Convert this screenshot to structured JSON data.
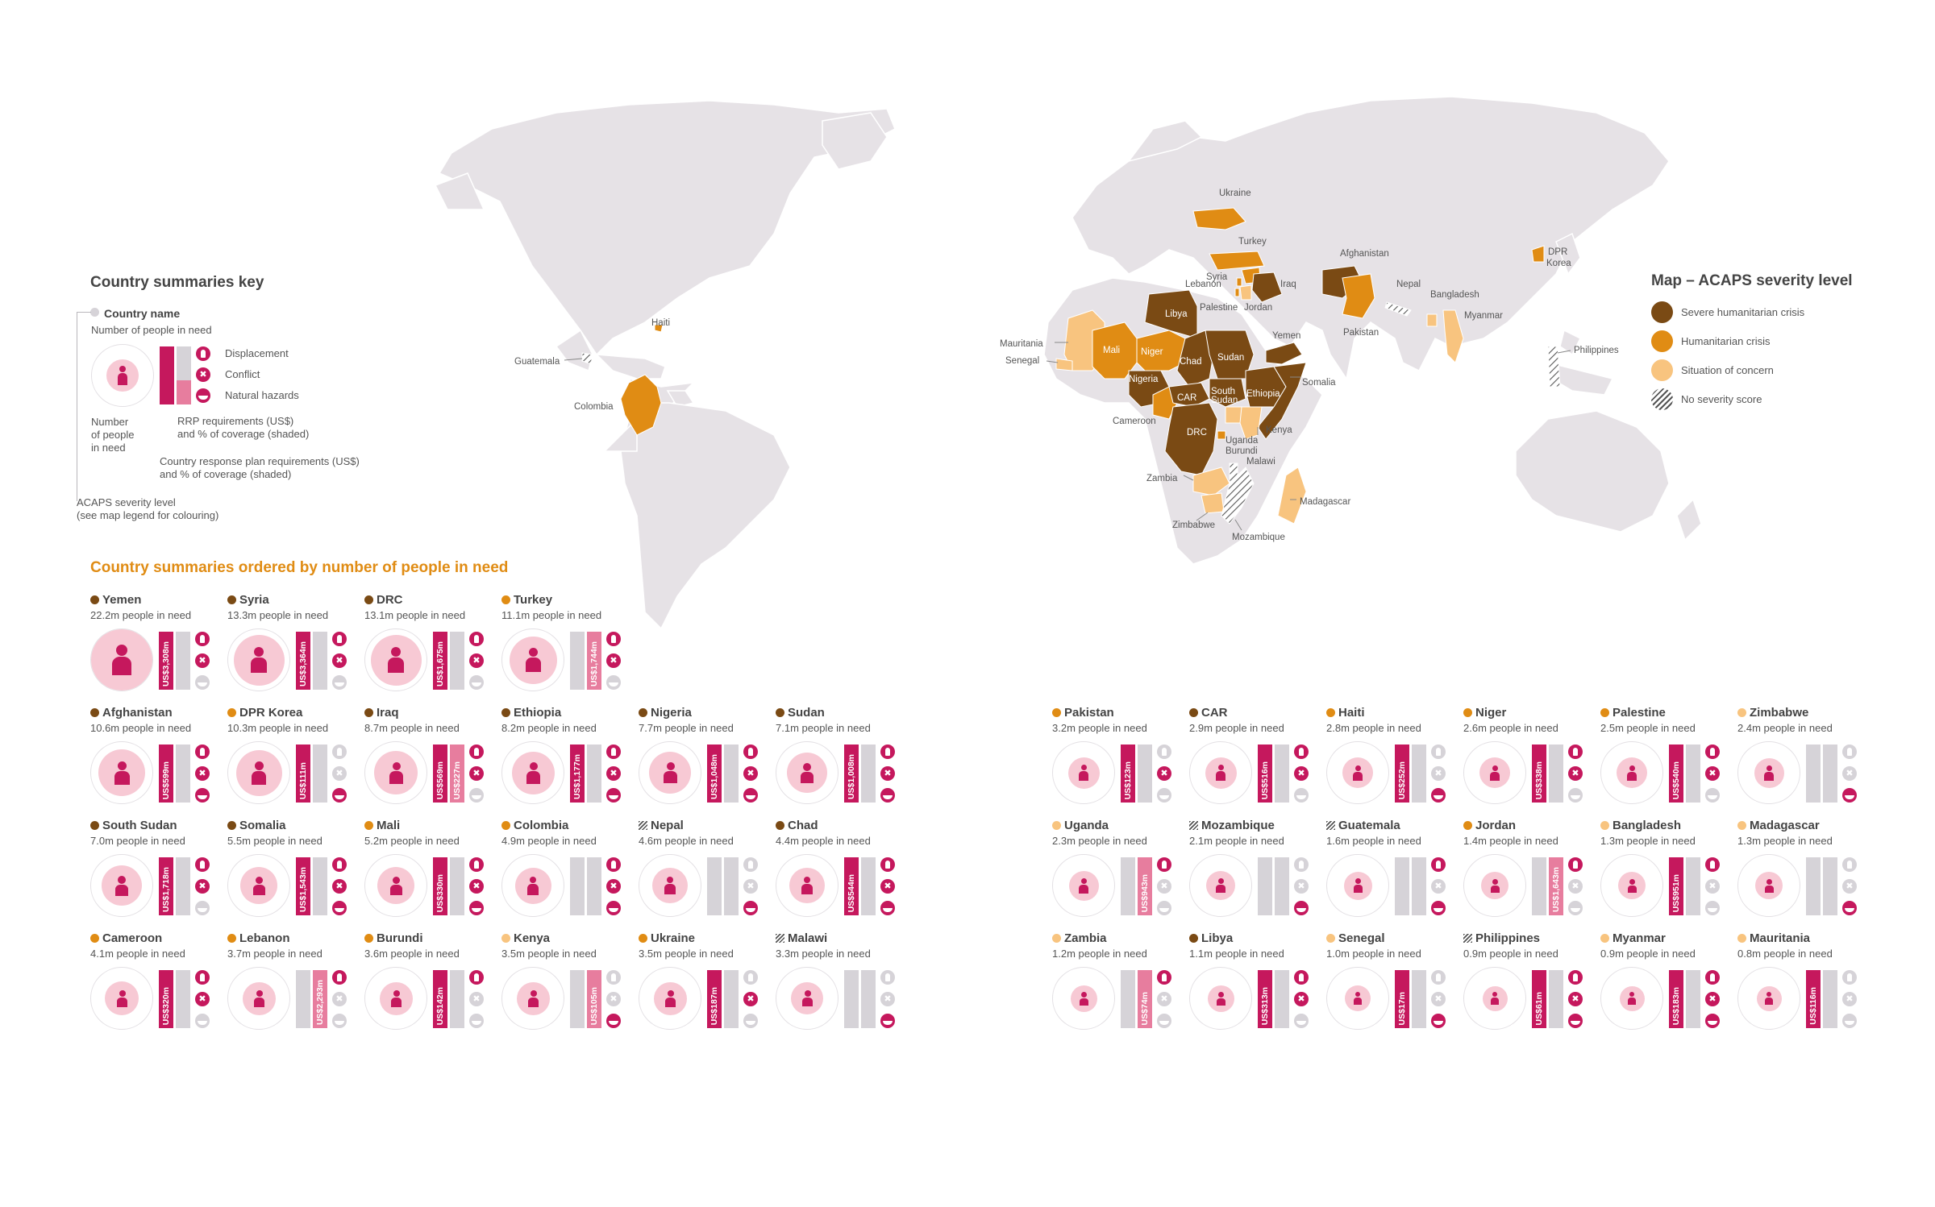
{
  "key": {
    "title": "Country summaries key",
    "country_name": "Country name",
    "people_in_need": "Number of people in need",
    "displacement": "Displacement",
    "conflict": "Conflict",
    "natural_hazards": "Natural hazards",
    "number_people_line1": "Number",
    "number_people_line2": "of people",
    "number_people_line3": "in need",
    "rrp_line1": "RRP requirements (US$)",
    "rrp_line2": "and % of coverage (shaded)",
    "crp_line1": "Country response plan requirements (US$)",
    "crp_line2": "and % of coverage (shaded)",
    "acaps_line1": "ACAPS severity level",
    "acaps_line2": "(see map legend for colouring)"
  },
  "section_title": "Country summaries ordered by number of people in need",
  "legend": {
    "title": "Map – ACAPS severity level",
    "items": [
      {
        "label": "Severe humanitarian crisis",
        "color": "#7a4a14"
      },
      {
        "label": "Humanitarian crisis",
        "color": "#e08c14"
      },
      {
        "label": "Situation of concern",
        "color": "#f8c47f"
      },
      {
        "label": "No severity score",
        "color": "hatch"
      }
    ]
  },
  "colors": {
    "severe": "#7a4a14",
    "crisis": "#e08c14",
    "concern": "#f8c47f",
    "plan_fill": "#c5185d",
    "rrp_fill": "#e77d9e",
    "grey": "#d6d3d8",
    "land": "#e6e2e6"
  },
  "map_labels": {
    "ukraine": "Ukraine",
    "turkey": "Turkey",
    "syria": "Syria",
    "lebanon": "Lebanon",
    "iraq": "Iraq",
    "palestine": "Palestine",
    "jordan": "Jordan",
    "afghanistan": "Afghanistan",
    "pakistan": "Pakistan",
    "nepal": "Nepal",
    "bangladesh": "Bangladesh",
    "myanmar": "Myanmar",
    "dpr_korea_1": "DPR",
    "dpr_korea_2": "Korea",
    "philippines": "Philippines",
    "yemen": "Yemen",
    "somalia": "Somalia",
    "kenya": "Kenya",
    "ethiopia": "Ethiopia",
    "south_sudan_1": "South",
    "south_sudan_2": "Sudan",
    "sudan": "Sudan",
    "chad": "Chad",
    "car": "CAR",
    "nigeria": "Nigeria",
    "niger": "Niger",
    "mali": "Mali",
    "libya": "Libya",
    "mauritania": "Mauritania",
    "senegal": "Senegal",
    "cameroon": "Cameroon",
    "drc": "DRC",
    "uganda": "Uganda",
    "burundi": "Burundi",
    "malawi": "Malawi",
    "zambia": "Zambia",
    "zimbabwe": "Zimbabwe",
    "mozambique": "Mozambique",
    "madagascar": "Madagascar",
    "haiti": "Haiti",
    "guatemala": "Guatemala",
    "colombia": "Colombia"
  },
  "countries": [
    {
      "name": "Yemen",
      "people": "22.2m people in need",
      "sev": "severe",
      "size": 1.0,
      "req": "US$3,308m",
      "cov": 0.0,
      "rrp": null,
      "rrp_cov": 0,
      "d": true,
      "c": true,
      "n": false
    },
    {
      "name": "Syria",
      "people": "13.3m people in need",
      "sev": "severe",
      "size": 0.78,
      "req": "US$3,364m",
      "cov": 0.0,
      "rrp": null,
      "rrp_cov": 0,
      "d": true,
      "c": true,
      "n": false
    },
    {
      "name": "DRC",
      "people": "13.1m people in need",
      "sev": "severe",
      "size": 0.77,
      "req": "US$1,675m",
      "cov": 0.0,
      "rrp": null,
      "rrp_cov": 0,
      "d": true,
      "c": true,
      "n": false
    },
    {
      "name": "Turkey",
      "people": "11.1m people in need",
      "sev": "crisis",
      "size": 0.71,
      "req": null,
      "cov": 0,
      "rrp": "US$1,744m",
      "rrp_cov": 0.0,
      "d": true,
      "c": true,
      "n": false
    },
    {
      "name": "Afghanistan",
      "people": "10.6m people in need",
      "sev": "severe",
      "size": 0.69,
      "req": "US$599m",
      "cov": 0.0,
      "rrp": null,
      "rrp_cov": 0,
      "d": true,
      "c": true,
      "n": true
    },
    {
      "name": "DPR Korea",
      "people": "10.3m people in need",
      "sev": "crisis",
      "size": 0.68,
      "req": "US$111m",
      "cov": 0.22,
      "rrp": null,
      "rrp_cov": 0,
      "d": false,
      "c": false,
      "n": true
    },
    {
      "name": "Iraq",
      "people": "8.7m people in need",
      "sev": "severe",
      "size": 0.62,
      "req": "US$569m",
      "cov": 0.0,
      "rrp": "US$227m",
      "rrp_cov": 0.0,
      "d": true,
      "c": true,
      "n": false
    },
    {
      "name": "Ethiopia",
      "people": "8.2m people in need",
      "sev": "severe",
      "size": 0.6,
      "req": "US$1,177m",
      "cov": 0.0,
      "rrp": null,
      "rrp_cov": 0,
      "d": true,
      "c": true,
      "n": true
    },
    {
      "name": "Nigeria",
      "people": "7.7m people in need",
      "sev": "severe",
      "size": 0.58,
      "req": "US$1,048m",
      "cov": 0.0,
      "rrp": null,
      "rrp_cov": 0,
      "d": true,
      "c": true,
      "n": true
    },
    {
      "name": "Sudan",
      "people": "7.1m people in need",
      "sev": "severe",
      "size": 0.56,
      "req": "US$1,008m",
      "cov": 0.0,
      "rrp": null,
      "rrp_cov": 0,
      "d": true,
      "c": true,
      "n": true
    },
    {
      "name": "South Sudan",
      "people": "7.0m people in need",
      "sev": "severe",
      "size": 0.55,
      "req": "US$1,718m",
      "cov": 0.0,
      "rrp": null,
      "rrp_cov": 0,
      "d": true,
      "c": true,
      "n": false
    },
    {
      "name": "Somalia",
      "people": "5.5m people in need",
      "sev": "severe",
      "size": 0.49,
      "req": "US$1,543m",
      "cov": 0.0,
      "rrp": null,
      "rrp_cov": 0,
      "d": true,
      "c": true,
      "n": true
    },
    {
      "name": "Mali",
      "people": "5.2m people in need",
      "sev": "crisis",
      "size": 0.48,
      "req": "US$330m",
      "cov": 0.0,
      "rrp": null,
      "rrp_cov": 0,
      "d": true,
      "c": true,
      "n": true
    },
    {
      "name": "Colombia",
      "people": "4.9m people in need",
      "sev": "crisis",
      "size": 0.46,
      "req": null,
      "cov": 0,
      "rrp": null,
      "rrp_cov": 0,
      "d": true,
      "c": true,
      "n": true
    },
    {
      "name": "Nepal",
      "people": "4.6m people in need",
      "sev": "hatch",
      "size": 0.45,
      "req": null,
      "cov": 0,
      "rrp": null,
      "rrp_cov": 0,
      "d": false,
      "c": false,
      "n": true
    },
    {
      "name": "Chad",
      "people": "4.4m people in need",
      "sev": "severe",
      "size": 0.44,
      "req": "US$544m",
      "cov": 0.0,
      "rrp": null,
      "rrp_cov": 0,
      "d": true,
      "c": true,
      "n": true
    },
    {
      "name": "Cameroon",
      "people": "4.1m people in need",
      "sev": "crisis",
      "size": 0.42,
      "req": "US$320m",
      "cov": 0.0,
      "rrp": null,
      "rrp_cov": 0,
      "d": true,
      "c": true,
      "n": false
    },
    {
      "name": "Lebanon",
      "people": "3.7m people in need",
      "sev": "crisis",
      "size": 0.4,
      "req": null,
      "cov": 0,
      "rrp": "US$2,293m",
      "rrp_cov": 0.0,
      "d": true,
      "c": false,
      "n": false
    },
    {
      "name": "Burundi",
      "people": "3.6m people in need",
      "sev": "crisis",
      "size": 0.39,
      "req": "US$142m",
      "cov": 0.0,
      "rrp": null,
      "rrp_cov": 0,
      "d": true,
      "c": false,
      "n": false
    },
    {
      "name": "Kenya",
      "people": "3.5m people in need",
      "sev": "concern",
      "size": 0.39,
      "req": null,
      "cov": 0,
      "rrp": "US$105m",
      "rrp_cov": 0.0,
      "d": false,
      "c": false,
      "n": true
    },
    {
      "name": "Ukraine",
      "people": "3.5m people in need",
      "sev": "crisis",
      "size": 0.39,
      "req": "US$187m",
      "cov": 0.0,
      "rrp": null,
      "rrp_cov": 0,
      "d": false,
      "c": true,
      "n": false
    },
    {
      "name": "Malawi",
      "people": "3.3m people in need",
      "sev": "hatch",
      "size": 0.38,
      "req": null,
      "cov": 0,
      "rrp": null,
      "rrp_cov": 0,
      "d": false,
      "c": false,
      "n": true
    },
    {
      "name": "Pakistan",
      "people": "3.2m people in need",
      "sev": "crisis",
      "size": 0.37,
      "req": "US$123m",
      "cov": 0.0,
      "rrp": null,
      "rrp_cov": 0,
      "d": false,
      "c": true,
      "n": false
    },
    {
      "name": "CAR",
      "people": "2.9m people in need",
      "sev": "severe",
      "size": 0.36,
      "req": "US$516m",
      "cov": 0.0,
      "rrp": null,
      "rrp_cov": 0,
      "d": true,
      "c": true,
      "n": false
    },
    {
      "name": "Haiti",
      "people": "2.8m people in need",
      "sev": "crisis",
      "size": 0.35,
      "req": "US$252m",
      "cov": 0.1,
      "rrp": null,
      "rrp_cov": 0,
      "d": false,
      "c": false,
      "n": true
    },
    {
      "name": "Niger",
      "people": "2.6m people in need",
      "sev": "crisis",
      "size": 0.34,
      "req": "US$338m",
      "cov": 0.0,
      "rrp": null,
      "rrp_cov": 0,
      "d": true,
      "c": true,
      "n": false
    },
    {
      "name": "Palestine",
      "people": "2.5m people in need",
      "sev": "crisis",
      "size": 0.34,
      "req": "US$540m",
      "cov": 0.0,
      "rrp": null,
      "rrp_cov": 0,
      "d": true,
      "c": true,
      "n": false
    },
    {
      "name": "Zimbabwe",
      "people": "2.4m people in need",
      "sev": "concern",
      "size": 0.33,
      "req": null,
      "cov": 0,
      "rrp": null,
      "rrp_cov": 0,
      "d": false,
      "c": false,
      "n": true
    },
    {
      "name": "Uganda",
      "people": "2.3m people in need",
      "sev": "concern",
      "size": 0.33,
      "req": null,
      "cov": 0,
      "rrp": "US$943m",
      "rrp_cov": 0.0,
      "d": true,
      "c": false,
      "n": false
    },
    {
      "name": "Mozambique",
      "people": "2.1m people in need",
      "sev": "hatch",
      "size": 0.31,
      "req": null,
      "cov": 0,
      "rrp": null,
      "rrp_cov": 0,
      "d": false,
      "c": false,
      "n": true
    },
    {
      "name": "Guatemala",
      "people": "1.6m people in need",
      "sev": "hatch",
      "size": 0.29,
      "req": null,
      "cov": 0,
      "rrp": null,
      "rrp_cov": 0,
      "d": true,
      "c": false,
      "n": true
    },
    {
      "name": "Jordan",
      "people": "1.4m people in need",
      "sev": "crisis",
      "size": 0.28,
      "req": null,
      "cov": 0,
      "rrp": "US$1,643m",
      "rrp_cov": 0.0,
      "d": true,
      "c": false,
      "n": false
    },
    {
      "name": "Bangladesh",
      "people": "1.3m people in need",
      "sev": "concern",
      "size": 0.27,
      "req": "US$951m",
      "cov": 0.0,
      "rrp": null,
      "rrp_cov": 0,
      "d": true,
      "c": false,
      "n": false
    },
    {
      "name": "Madagascar",
      "people": "1.3m people in need",
      "sev": "concern",
      "size": 0.27,
      "req": null,
      "cov": 0,
      "rrp": null,
      "rrp_cov": 0,
      "d": false,
      "c": false,
      "n": true
    },
    {
      "name": "Zambia",
      "people": "1.2m people in need",
      "sev": "concern",
      "size": 0.26,
      "req": null,
      "cov": 0,
      "rrp": "US$74m",
      "rrp_cov": 0.0,
      "d": true,
      "c": false,
      "n": false
    },
    {
      "name": "Libya",
      "people": "1.1m people in need",
      "sev": "severe",
      "size": 0.25,
      "req": "US$313m",
      "cov": 0.25,
      "rrp": null,
      "rrp_cov": 0,
      "d": true,
      "c": true,
      "n": false
    },
    {
      "name": "Senegal",
      "people": "1.0m people in need",
      "sev": "concern",
      "size": 0.24,
      "req": "US$17m",
      "cov": 0.0,
      "rrp": null,
      "rrp_cov": 0,
      "d": false,
      "c": false,
      "n": true
    },
    {
      "name": "Philippines",
      "people": "0.9m people in need",
      "sev": "hatch",
      "size": 0.23,
      "req": "US$61m",
      "cov": 0.3,
      "rrp": null,
      "rrp_cov": 0,
      "d": true,
      "c": true,
      "n": true
    },
    {
      "name": "Myanmar",
      "people": "0.9m people in need",
      "sev": "concern",
      "size": 0.23,
      "req": "US$183m",
      "cov": 0.0,
      "rrp": null,
      "rrp_cov": 0,
      "d": true,
      "c": true,
      "n": true
    },
    {
      "name": "Mauritania",
      "people": "0.8m people in need",
      "sev": "concern",
      "size": 0.22,
      "req": "US$116m",
      "cov": 0.0,
      "rrp": null,
      "rrp_cov": 0,
      "d": false,
      "c": false,
      "n": false
    }
  ]
}
